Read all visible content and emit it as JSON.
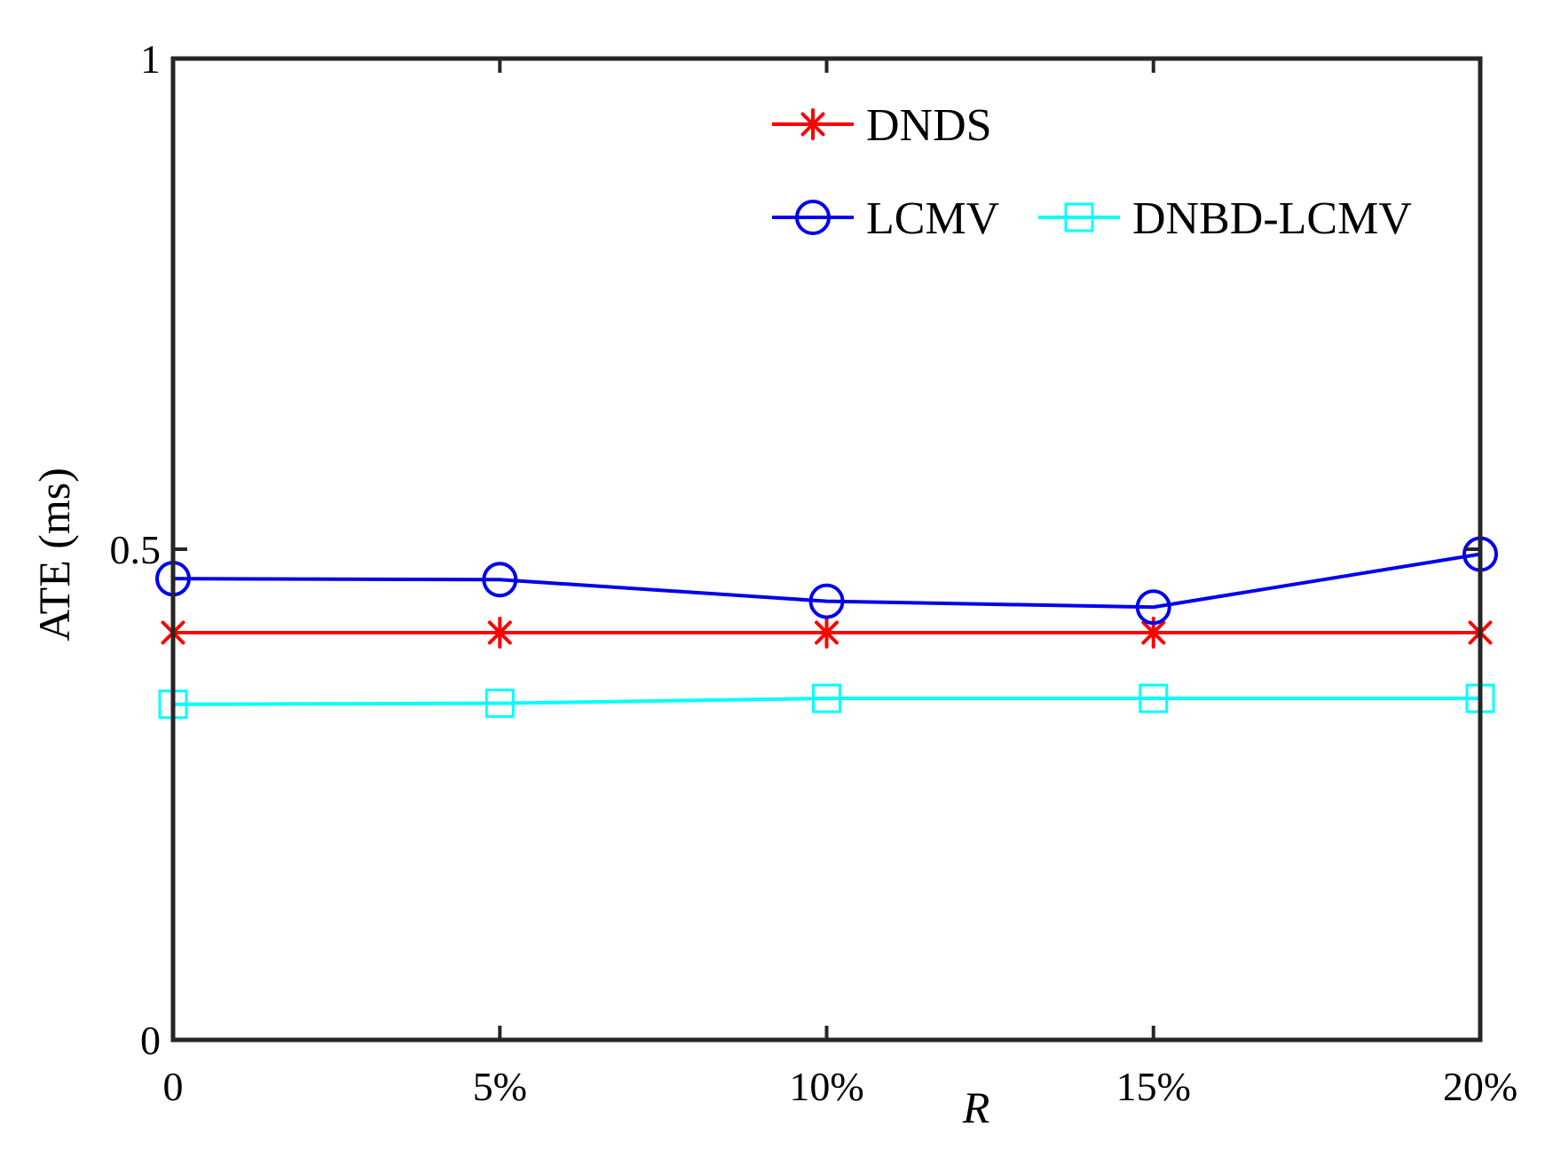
{
  "chart_data": {
    "type": "line",
    "categories": [
      "0",
      "5%",
      "10%",
      "15%",
      "20%"
    ],
    "xlabel": "R",
    "ylabel": "ATE (ms)",
    "ylim": [
      0,
      1
    ],
    "yticks": [
      0,
      0.5,
      1
    ],
    "ytick_labels": [
      "0",
      "0.5",
      "1"
    ],
    "grid": false,
    "legend_position": "top-right",
    "series": [
      {
        "name": "DNDS",
        "color": "#ff0000",
        "marker": "asterisk",
        "values": [
          0.415,
          0.415,
          0.415,
          0.415,
          0.415
        ]
      },
      {
        "name": "LCMV",
        "color": "#0000ee",
        "marker": "circle",
        "values": [
          0.47,
          0.469,
          0.447,
          0.441,
          0.495
        ]
      },
      {
        "name": "DNBD-LCMV",
        "color": "#00ffff",
        "marker": "square",
        "values": [
          0.342,
          0.343,
          0.348,
          0.348,
          0.348
        ]
      }
    ]
  }
}
